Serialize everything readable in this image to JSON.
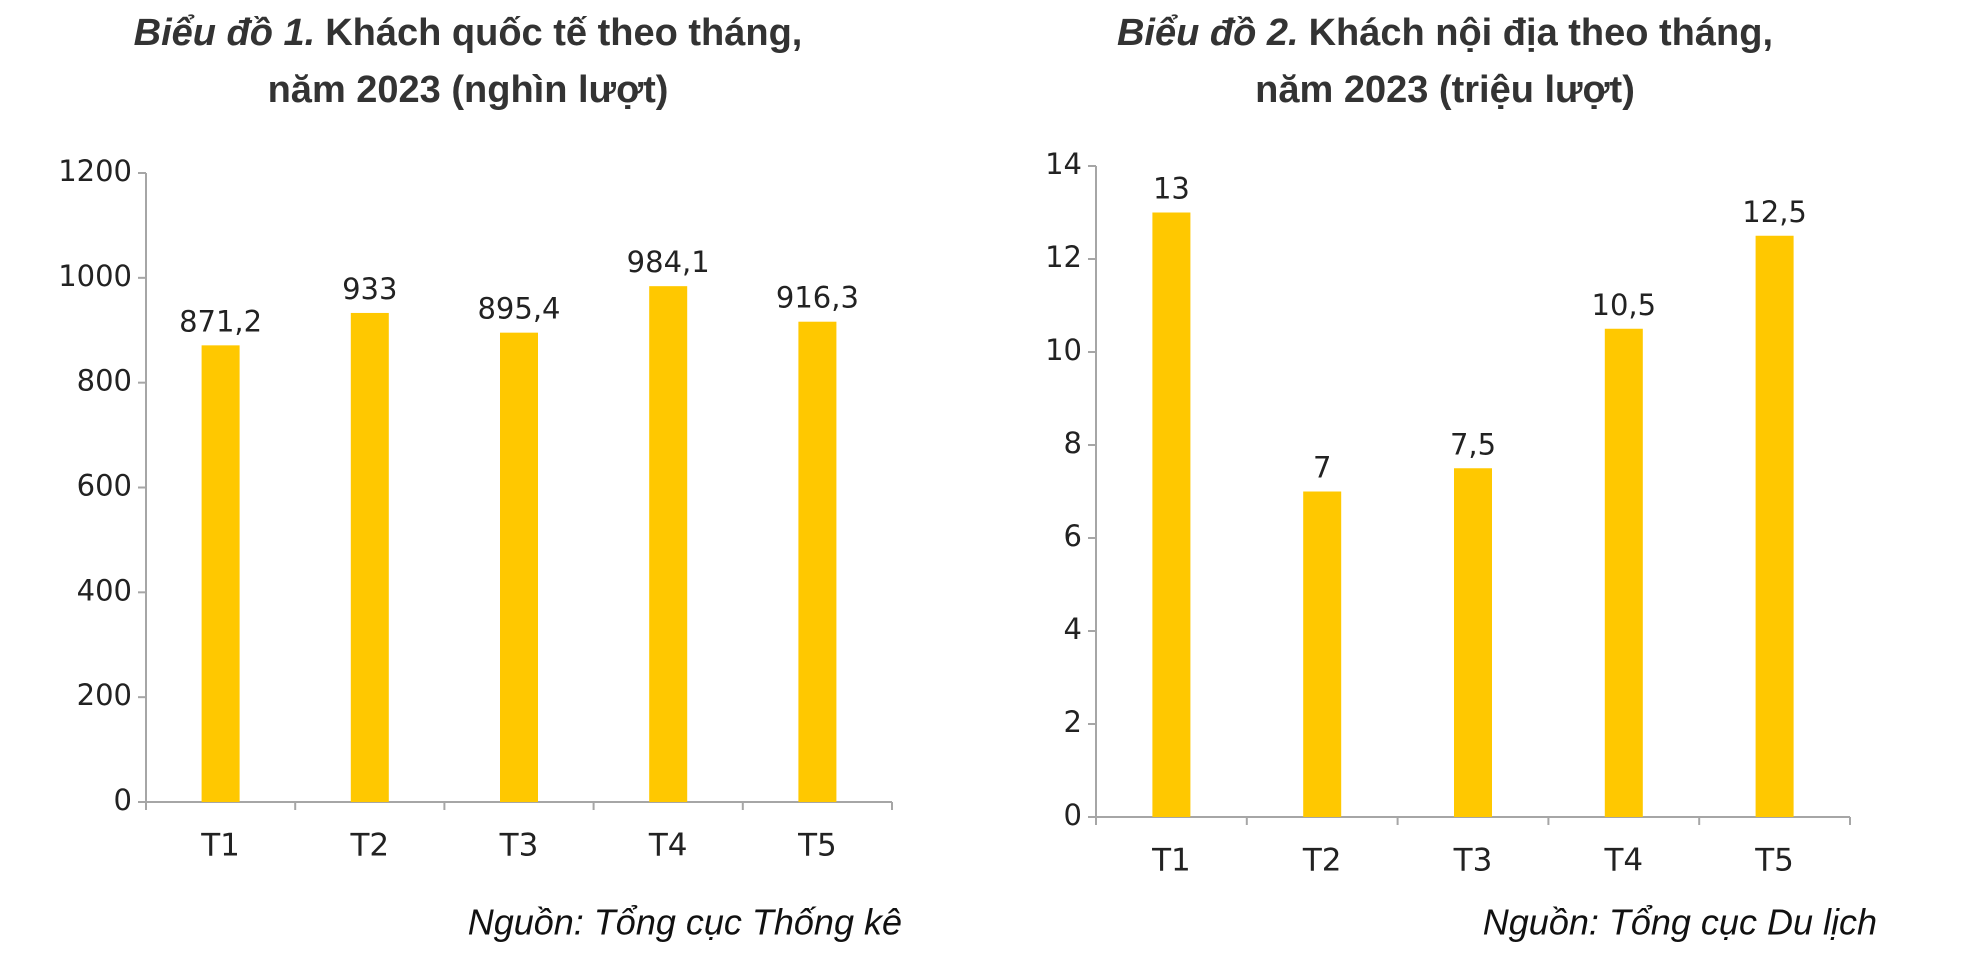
{
  "chart_data": [
    {
      "type": "bar",
      "label": "Biểu đồ 1.",
      "title": "Khách quốc tế theo tháng,",
      "subtitle": "năm 2023 (nghìn lượt)",
      "categories": [
        "T1",
        "T2",
        "T3",
        "T4",
        "T5"
      ],
      "values": [
        871.2,
        933,
        895.4,
        984.1,
        916.3
      ],
      "value_labels": [
        "871,2",
        "933",
        "895,4",
        "984,1",
        "916,3"
      ],
      "color": "#ffc800",
      "ylim": [
        0,
        1200
      ],
      "yticks": [
        0,
        200,
        400,
        600,
        800,
        1000,
        1200
      ],
      "grid": false,
      "source": "Nguồn: Tổng cục Thống kê"
    },
    {
      "type": "bar",
      "label": "Biểu đồ 2.",
      "title": "Khách nội địa theo tháng,",
      "subtitle": "năm 2023 (triệu lượt)",
      "categories": [
        "T1",
        "T2",
        "T3",
        "T4",
        "T5"
      ],
      "values": [
        13,
        7,
        7.5,
        10.5,
        12.5
      ],
      "value_labels": [
        "13",
        "7",
        "7,5",
        "10,5",
        "12,5"
      ],
      "color": "#ffc800",
      "ylim": [
        0,
        14
      ],
      "yticks": [
        0,
        2,
        4,
        6,
        8,
        10,
        12,
        14
      ],
      "grid": false,
      "source": "Nguồn: Tổng cục Du lịch"
    }
  ]
}
